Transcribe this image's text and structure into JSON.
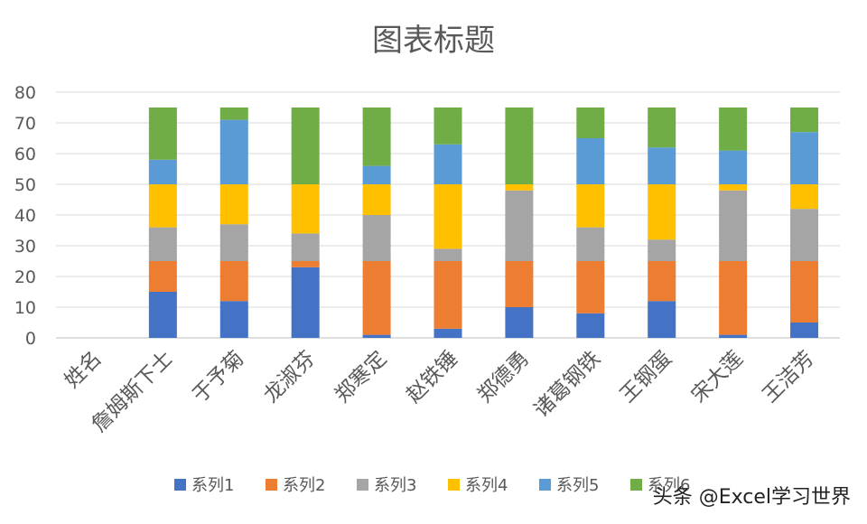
{
  "chart_data": {
    "type": "bar",
    "stacked": true,
    "title": "图表标题",
    "categories": [
      "姓名",
      "詹姆斯下士",
      "于予菊",
      "龙淑芬",
      "郑寒定",
      "赵铁锤",
      "郑德勇",
      "诸葛钢铁",
      "王钢蛋",
      "宋大莲",
      "王洁芳"
    ],
    "series": [
      {
        "name": "系列1",
        "color": "#4472C4",
        "values": [
          0,
          15,
          12,
          23,
          1,
          3,
          10,
          8,
          12,
          1,
          5
        ]
      },
      {
        "name": "系列2",
        "color": "#ED7D31",
        "values": [
          0,
          10,
          13,
          2,
          24,
          22,
          15,
          17,
          13,
          24,
          20
        ]
      },
      {
        "name": "系列3",
        "color": "#A5A5A5",
        "values": [
          0,
          11,
          12,
          9,
          15,
          4,
          23,
          11,
          7,
          23,
          17
        ]
      },
      {
        "name": "系列4",
        "color": "#FFC000",
        "values": [
          0,
          14,
          13,
          16,
          10,
          21,
          2,
          14,
          18,
          2,
          8
        ]
      },
      {
        "name": "系列5",
        "color": "#5B9BD5",
        "values": [
          0,
          8,
          21,
          0,
          6,
          13,
          0,
          15,
          12,
          11,
          17
        ]
      },
      {
        "name": "系列6",
        "color": "#70AD47",
        "values": [
          0,
          17,
          4,
          25,
          19,
          12,
          25,
          10,
          13,
          14,
          8
        ]
      }
    ],
    "ylim": [
      0,
      80
    ],
    "yticks": [
      0,
      10,
      20,
      30,
      40,
      50,
      60,
      70,
      80
    ],
    "xlabel": "",
    "ylabel": "",
    "grid": true,
    "legend": "bottom"
  },
  "watermark": "头条 @Excel学习世界"
}
